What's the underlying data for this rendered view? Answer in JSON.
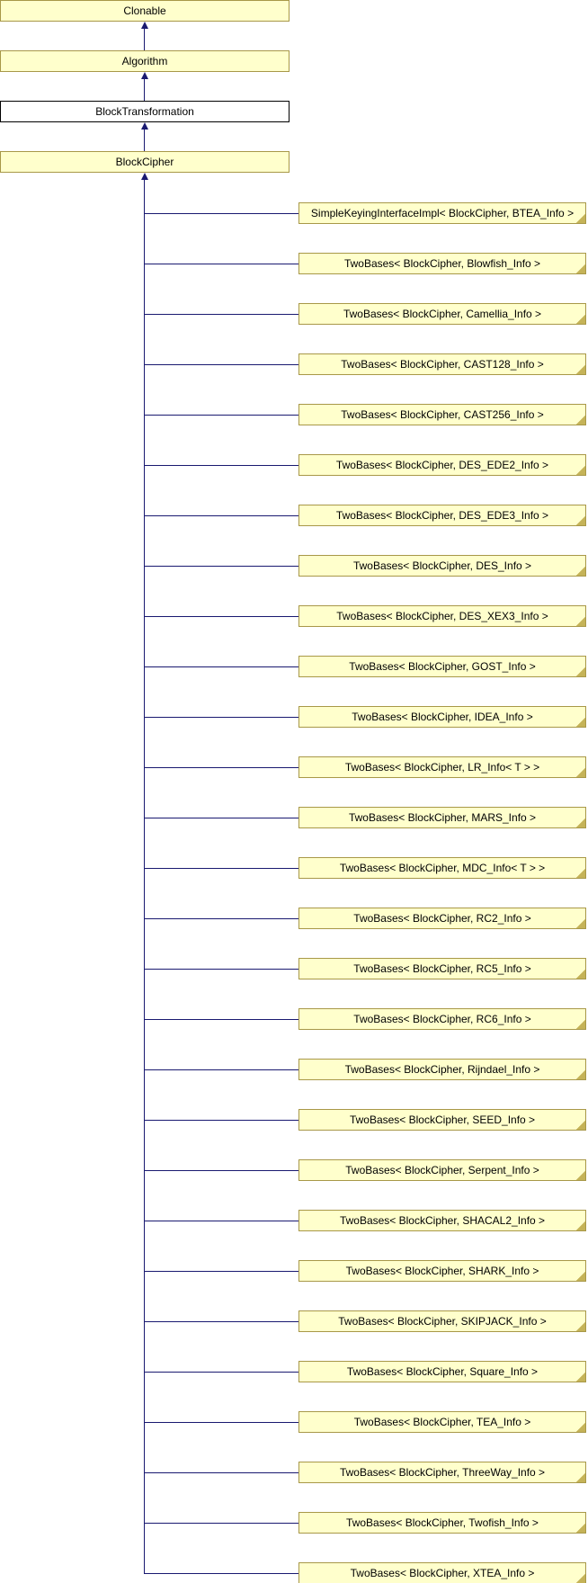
{
  "diagram": {
    "ancestors": [
      {
        "label": "Clonable",
        "highlighted": false
      },
      {
        "label": "Algorithm",
        "highlighted": false
      },
      {
        "label": "BlockTransformation",
        "highlighted": true
      },
      {
        "label": "BlockCipher",
        "highlighted": false
      }
    ],
    "derived": [
      {
        "label": "SimpleKeyingInterfaceImpl< BlockCipher, BTEA_Info >"
      },
      {
        "label": "TwoBases< BlockCipher, Blowfish_Info >"
      },
      {
        "label": "TwoBases< BlockCipher, Camellia_Info >"
      },
      {
        "label": "TwoBases< BlockCipher, CAST128_Info >"
      },
      {
        "label": "TwoBases< BlockCipher, CAST256_Info >"
      },
      {
        "label": "TwoBases< BlockCipher, DES_EDE2_Info >"
      },
      {
        "label": "TwoBases< BlockCipher, DES_EDE3_Info >"
      },
      {
        "label": "TwoBases< BlockCipher, DES_Info >"
      },
      {
        "label": "TwoBases< BlockCipher, DES_XEX3_Info >"
      },
      {
        "label": "TwoBases< BlockCipher, GOST_Info >"
      },
      {
        "label": "TwoBases< BlockCipher, IDEA_Info >"
      },
      {
        "label": "TwoBases< BlockCipher, LR_Info< T > >"
      },
      {
        "label": "TwoBases< BlockCipher, MARS_Info >"
      },
      {
        "label": "TwoBases< BlockCipher, MDC_Info< T > >"
      },
      {
        "label": "TwoBases< BlockCipher, RC2_Info >"
      },
      {
        "label": "TwoBases< BlockCipher, RC5_Info >"
      },
      {
        "label": "TwoBases< BlockCipher, RC6_Info >"
      },
      {
        "label": "TwoBases< BlockCipher, Rijndael_Info >"
      },
      {
        "label": "TwoBases< BlockCipher, SEED_Info >"
      },
      {
        "label": "TwoBases< BlockCipher, Serpent_Info >"
      },
      {
        "label": "TwoBases< BlockCipher, SHACAL2_Info >"
      },
      {
        "label": "TwoBases< BlockCipher, SHARK_Info >"
      },
      {
        "label": "TwoBases< BlockCipher, SKIPJACK_Info >"
      },
      {
        "label": "TwoBases< BlockCipher, Square_Info >"
      },
      {
        "label": "TwoBases< BlockCipher, TEA_Info >"
      },
      {
        "label": "TwoBases< BlockCipher, ThreeWay_Info >"
      },
      {
        "label": "TwoBases< BlockCipher, Twofish_Info >"
      },
      {
        "label": "TwoBases< BlockCipher, XTEA_Info >"
      }
    ],
    "colors": {
      "node_fill": "#ffffcc",
      "node_border": "#a89848",
      "highlight_fill": "#ffffff",
      "highlight_border": "#000000",
      "edge": "#191970",
      "fold": "#c5b358",
      "text": "#000000"
    }
  }
}
